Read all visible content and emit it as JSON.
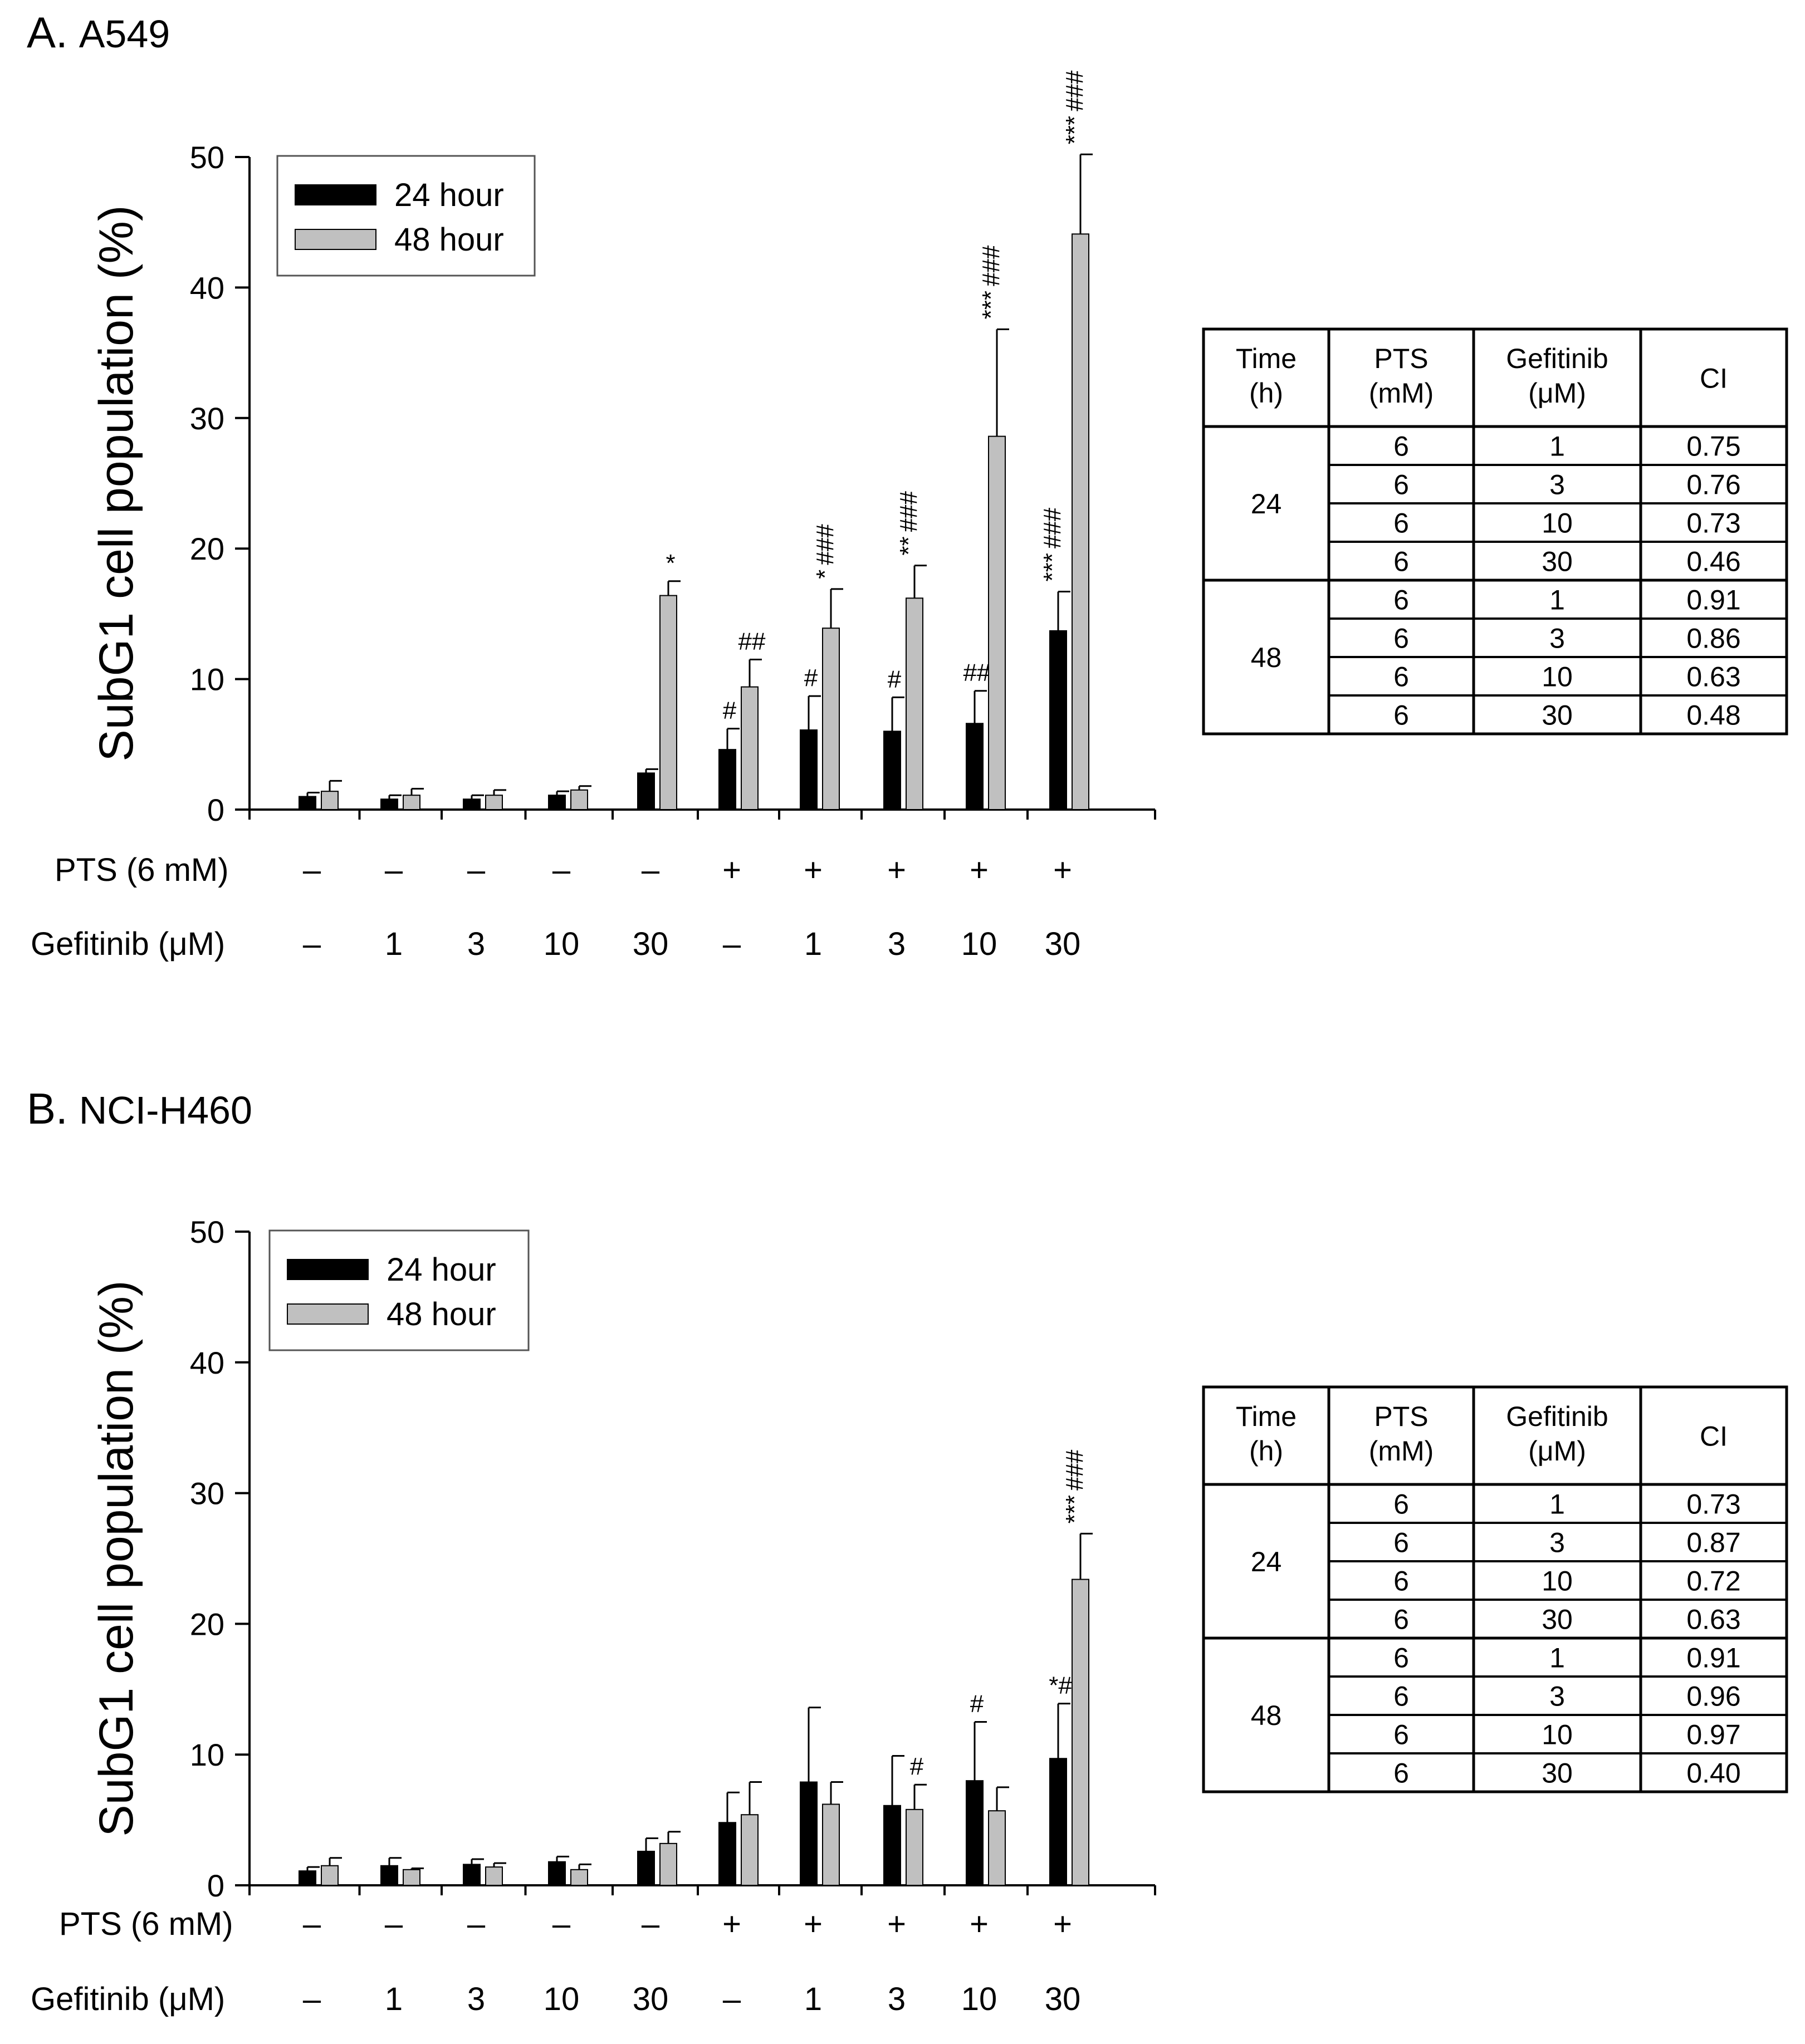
{
  "figure": {
    "panels": [
      {
        "letter": "A.",
        "cell_line": "A549"
      },
      {
        "letter": "B.",
        "cell_line": "NCI-H460"
      }
    ],
    "y_axis_label": "SubG1 cell population (%)",
    "row_labels": {
      "pts": "PTS (6 mM)",
      "gefitinib": "Gefitinib (μM)"
    },
    "pts_marks": [
      "–",
      "–",
      "–",
      "–",
      "–",
      "+",
      "+",
      "+",
      "+",
      "+"
    ],
    "gefitinib_marks": [
      "–",
      "1",
      "3",
      "10",
      "30",
      "–",
      "1",
      "3",
      "10",
      "30"
    ],
    "legend": [
      "24 hour",
      "48 hour"
    ],
    "colors": {
      "h24": "#000000",
      "h48": "#c0c0c0"
    }
  },
  "chart_data": [
    {
      "type": "bar",
      "title": "A. A549",
      "ylabel": "SubG1 cell population (%)",
      "ylim": [
        0,
        50
      ],
      "yticks": [
        "0",
        "10",
        "20",
        "30",
        "40",
        "50"
      ],
      "categories": [
        "–/–",
        "–/1",
        "–/3",
        "–/10",
        "–/30",
        "+/–",
        "+/1",
        "+/3",
        "+/10",
        "+/30"
      ],
      "series": [
        {
          "name": "24 hour",
          "values": [
            1.0,
            0.8,
            0.8,
            1.1,
            2.8,
            4.6,
            6.1,
            6.0,
            6.6,
            13.7
          ],
          "errors": [
            0.3,
            0.3,
            0.3,
            0.3,
            0.3,
            1.6,
            2.6,
            2.6,
            2.5,
            3.0
          ],
          "annotations": [
            "",
            "",
            "",
            "",
            "",
            "#",
            "#",
            "#",
            "##",
            "***\n###"
          ]
        },
        {
          "name": "48 hour",
          "values": [
            1.4,
            1.1,
            1.1,
            1.5,
            16.4,
            9.4,
            13.9,
            16.2,
            28.6,
            44.1
          ],
          "errors": [
            0.8,
            0.5,
            0.4,
            0.3,
            1.1,
            2.1,
            3.0,
            2.5,
            8.2,
            6.1
          ],
          "annotations": [
            "",
            "",
            "",
            "",
            "*",
            "##",
            "*\n###",
            "**\n###",
            "***\n###",
            "***\n###"
          ]
        }
      ],
      "legend_position": "top-left",
      "ci_table": {
        "headers": [
          "Time\n(h)",
          "PTS\n(mM)",
          "Gefitinib\n(μM)",
          "CI"
        ],
        "groups": [
          {
            "time": "24",
            "rows": [
              [
                "6",
                "1",
                "0.75"
              ],
              [
                "6",
                "3",
                "0.76"
              ],
              [
                "6",
                "10",
                "0.73"
              ],
              [
                "6",
                "30",
                "0.46"
              ]
            ]
          },
          {
            "time": "48",
            "rows": [
              [
                "6",
                "1",
                "0.91"
              ],
              [
                "6",
                "3",
                "0.86"
              ],
              [
                "6",
                "10",
                "0.63"
              ],
              [
                "6",
                "30",
                "0.48"
              ]
            ]
          }
        ]
      }
    },
    {
      "type": "bar",
      "title": "B. NCI-H460",
      "ylabel": "SubG1 cell population (%)",
      "ylim": [
        0,
        50
      ],
      "yticks": [
        "0",
        "10",
        "20",
        "30",
        "40",
        "50"
      ],
      "categories": [
        "–/–",
        "–/1",
        "–/3",
        "–/10",
        "–/30",
        "+/–",
        "+/1",
        "+/3",
        "+/10",
        "+/30"
      ],
      "series": [
        {
          "name": "24 hour",
          "values": [
            1.1,
            1.5,
            1.6,
            1.8,
            2.6,
            4.8,
            7.9,
            6.1,
            8.0,
            9.7
          ],
          "errors": [
            0.3,
            0.6,
            0.4,
            0.4,
            1.0,
            2.3,
            5.7,
            3.8,
            4.5,
            4.2
          ],
          "annotations": [
            "",
            "",
            "",
            "",
            "",
            "",
            "",
            "",
            "#",
            "*#"
          ]
        },
        {
          "name": "48 hour",
          "values": [
            1.5,
            1.2,
            1.4,
            1.2,
            3.2,
            5.4,
            6.2,
            5.8,
            5.7,
            23.4
          ],
          "errors": [
            0.6,
            0.1,
            0.3,
            0.4,
            0.9,
            2.5,
            1.7,
            1.9,
            1.8,
            3.5
          ],
          "annotations": [
            "",
            "",
            "",
            "",
            "",
            "",
            "",
            "#",
            "",
            "***\n###"
          ]
        }
      ],
      "legend_position": "top-left",
      "ci_table": {
        "headers": [
          "Time\n(h)",
          "PTS\n(mM)",
          "Gefitinib\n(μM)",
          "CI"
        ],
        "groups": [
          {
            "time": "24",
            "rows": [
              [
                "6",
                "1",
                "0.73"
              ],
              [
                "6",
                "3",
                "0.87"
              ],
              [
                "6",
                "10",
                "0.72"
              ],
              [
                "6",
                "30",
                "0.63"
              ]
            ]
          },
          {
            "time": "48",
            "rows": [
              [
                "6",
                "1",
                "0.91"
              ],
              [
                "6",
                "3",
                "0.96"
              ],
              [
                "6",
                "10",
                "0.97"
              ],
              [
                "6",
                "30",
                "0.40"
              ]
            ]
          }
        ]
      }
    }
  ]
}
